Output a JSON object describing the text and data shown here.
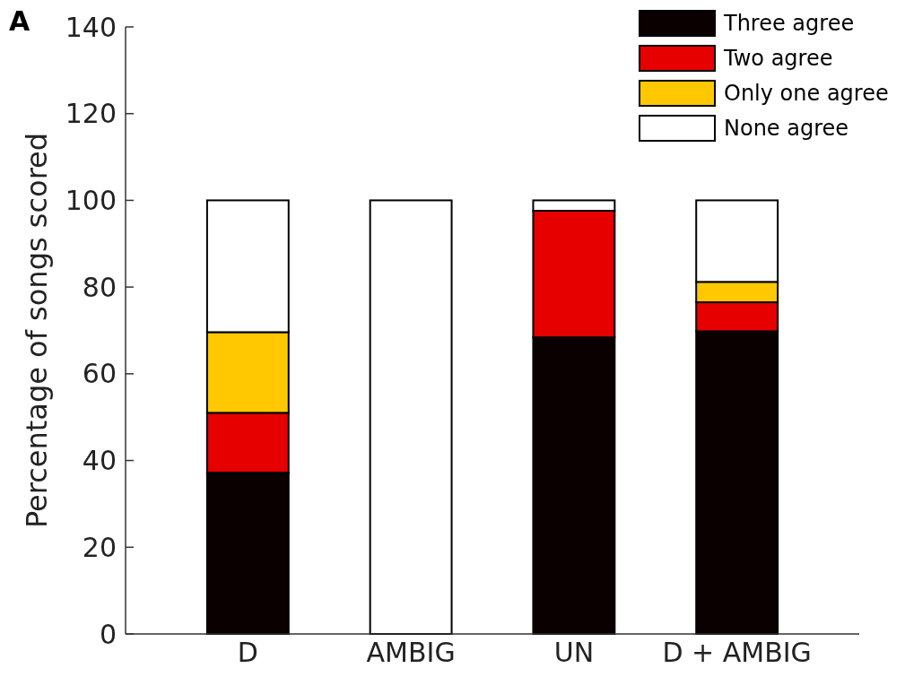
{
  "chart_data": {
    "type": "bar",
    "stacked": true,
    "categories": [
      "D",
      "AMBIG",
      "UN",
      "D + AMBIG"
    ],
    "series": [
      {
        "name": "Three agree",
        "color": "#0a0000",
        "values": [
          37.2,
          0,
          68.4,
          69.8
        ]
      },
      {
        "name": "Two agree",
        "color": "#e60000",
        "values": [
          13.8,
          0,
          29.2,
          6.7
        ]
      },
      {
        "name": "Only one agree",
        "color": "#ffc800",
        "values": [
          18.6,
          0,
          0,
          4.7
        ]
      },
      {
        "name": "None agree",
        "color": "#ffffff",
        "values": [
          30.4,
          100,
          2.4,
          18.8
        ]
      }
    ],
    "ylabel": "Percentage of songs scored",
    "ylim": [
      0,
      140
    ],
    "yticks": [
      0,
      20,
      40,
      60,
      80,
      100,
      120,
      140
    ],
    "legend": "top right",
    "annotations": [
      "A"
    ]
  }
}
